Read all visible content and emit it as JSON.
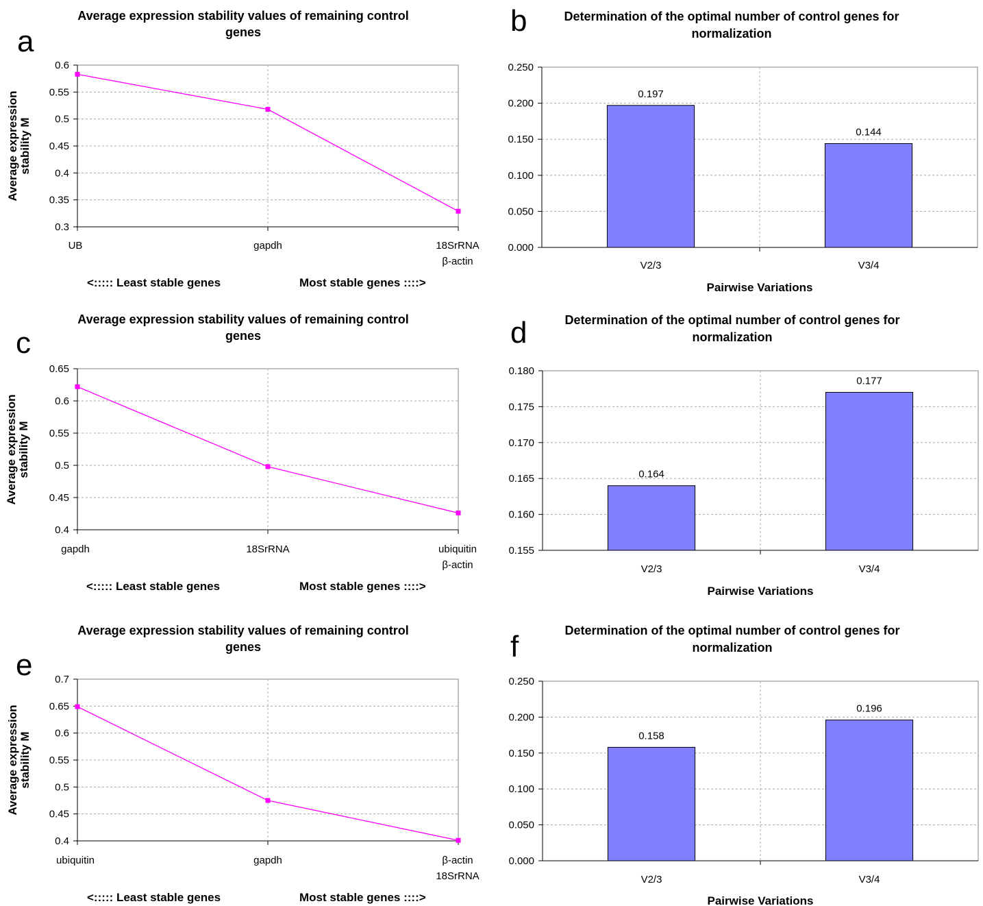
{
  "chart_data": [
    {
      "panel": "a",
      "type": "line",
      "title": "Average expression stability values of remaining control genes",
      "ylabel": "Average expression stability M",
      "categories": [
        [
          "UB"
        ],
        [
          "gapdh"
        ],
        [
          "18SrRNA",
          "β-actin"
        ]
      ],
      "values": [
        0.583,
        0.518,
        0.329
      ],
      "ylim": [
        0.3,
        0.6
      ],
      "yticks": [
        "0.3",
        "0.35",
        "0.4",
        "0.45",
        "0.5",
        "0.55",
        "0.6"
      ],
      "footer_left": "<:::::  Least stable genes",
      "footer_right": "Most stable genes ::::>",
      "color": "#ff00ff",
      "grid": true
    },
    {
      "panel": "b",
      "type": "bar",
      "title": "Determination of the optimal number of control genes for normalization",
      "xlabel": "Pairwise Variations",
      "categories": [
        "V2/3",
        "V3/4"
      ],
      "values": [
        0.197,
        0.144
      ],
      "labels": [
        "0.197",
        "0.144"
      ],
      "ylim": [
        0,
        0.25
      ],
      "yticks": [
        "0.000",
        "0.050",
        "0.100",
        "0.150",
        "0.200",
        "0.250"
      ],
      "color": "#8080ff",
      "grid": true
    },
    {
      "panel": "c",
      "type": "line",
      "title": "Average expression stability values of remaining control genes",
      "ylabel": "Average expression stability M",
      "categories": [
        [
          "gapdh"
        ],
        [
          "18SrRNA"
        ],
        [
          "ubiquitin",
          "β-actin"
        ]
      ],
      "values": [
        0.622,
        0.498,
        0.426
      ],
      "ylim": [
        0.4,
        0.65
      ],
      "yticks": [
        "0.4",
        "0.45",
        "0.5",
        "0.55",
        "0.6",
        "0.65"
      ],
      "footer_left": "<:::::  Least stable genes",
      "footer_right": "Most stable genes ::::>",
      "color": "#ff00ff",
      "grid": true
    },
    {
      "panel": "d",
      "type": "bar",
      "title": "Determination of the optimal number of control genes for normalization",
      "xlabel": "Pairwise Variations",
      "categories": [
        "V2/3",
        "V3/4"
      ],
      "values": [
        0.164,
        0.177
      ],
      "labels": [
        "0.164",
        "0.177"
      ],
      "ylim": [
        0.155,
        0.18
      ],
      "yticks": [
        "0.155",
        "0.160",
        "0.165",
        "0.170",
        "0.175",
        "0.180"
      ],
      "color": "#8080ff",
      "grid": true
    },
    {
      "panel": "e",
      "type": "line",
      "title": "Average expression stability values of remaining control genes",
      "ylabel": "Average expression stability M",
      "categories": [
        [
          "ubiquitin"
        ],
        [
          "gapdh"
        ],
        [
          "β-actin",
          "18SrRNA"
        ]
      ],
      "values": [
        0.649,
        0.475,
        0.401
      ],
      "ylim": [
        0.4,
        0.7
      ],
      "yticks": [
        "0.4",
        "0.45",
        "0.5",
        "0.55",
        "0.6",
        "0.65",
        "0.7"
      ],
      "footer_left": "<:::::  Least stable genes",
      "footer_right": "Most stable genes ::::>",
      "color": "#ff00ff",
      "grid": true
    },
    {
      "panel": "f",
      "type": "bar",
      "title": "Determination of the optimal number of control genes for normalization",
      "xlabel": "Pairwise Variations",
      "categories": [
        "V2/3",
        "V3/4"
      ],
      "values": [
        0.158,
        0.196
      ],
      "labels": [
        "0.158",
        "0.196"
      ],
      "ylim": [
        0,
        0.25
      ],
      "yticks": [
        "0.000",
        "0.050",
        "0.100",
        "0.150",
        "0.200",
        "0.250"
      ],
      "color": "#8080ff",
      "grid": true
    }
  ]
}
